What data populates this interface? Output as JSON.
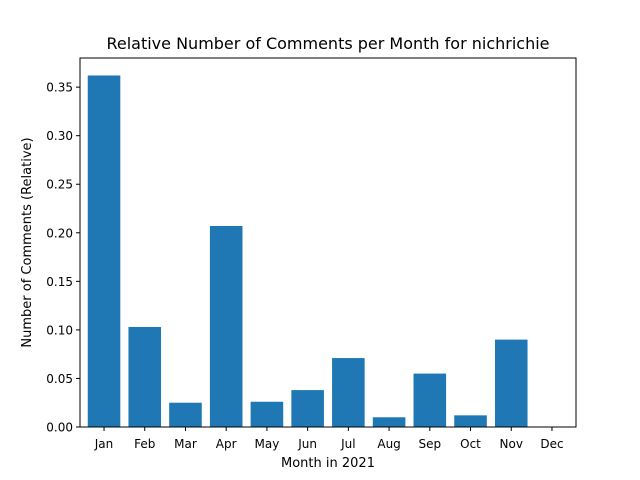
{
  "chart_data": {
    "type": "bar",
    "title": "Relative Number of Comments per Month for nichrichie",
    "xlabel": "Month in 2021",
    "ylabel": "Number of Comments (Relative)",
    "categories": [
      "Jan",
      "Feb",
      "Mar",
      "Apr",
      "May",
      "Jun",
      "Jul",
      "Aug",
      "Sep",
      "Oct",
      "Nov",
      "Dec"
    ],
    "values": [
      0.362,
      0.103,
      0.025,
      0.207,
      0.026,
      0.038,
      0.071,
      0.01,
      0.055,
      0.012,
      0.09,
      0.0
    ],
    "ylim": [
      0,
      0.38
    ],
    "yticks": [
      0.0,
      0.05,
      0.1,
      0.15,
      0.2,
      0.25,
      0.3,
      0.35
    ],
    "ytick_labels": [
      "0.00",
      "0.05",
      "0.10",
      "0.15",
      "0.20",
      "0.25",
      "0.30",
      "0.35"
    ],
    "grid": false,
    "bar_color": "#1f77b4"
  }
}
